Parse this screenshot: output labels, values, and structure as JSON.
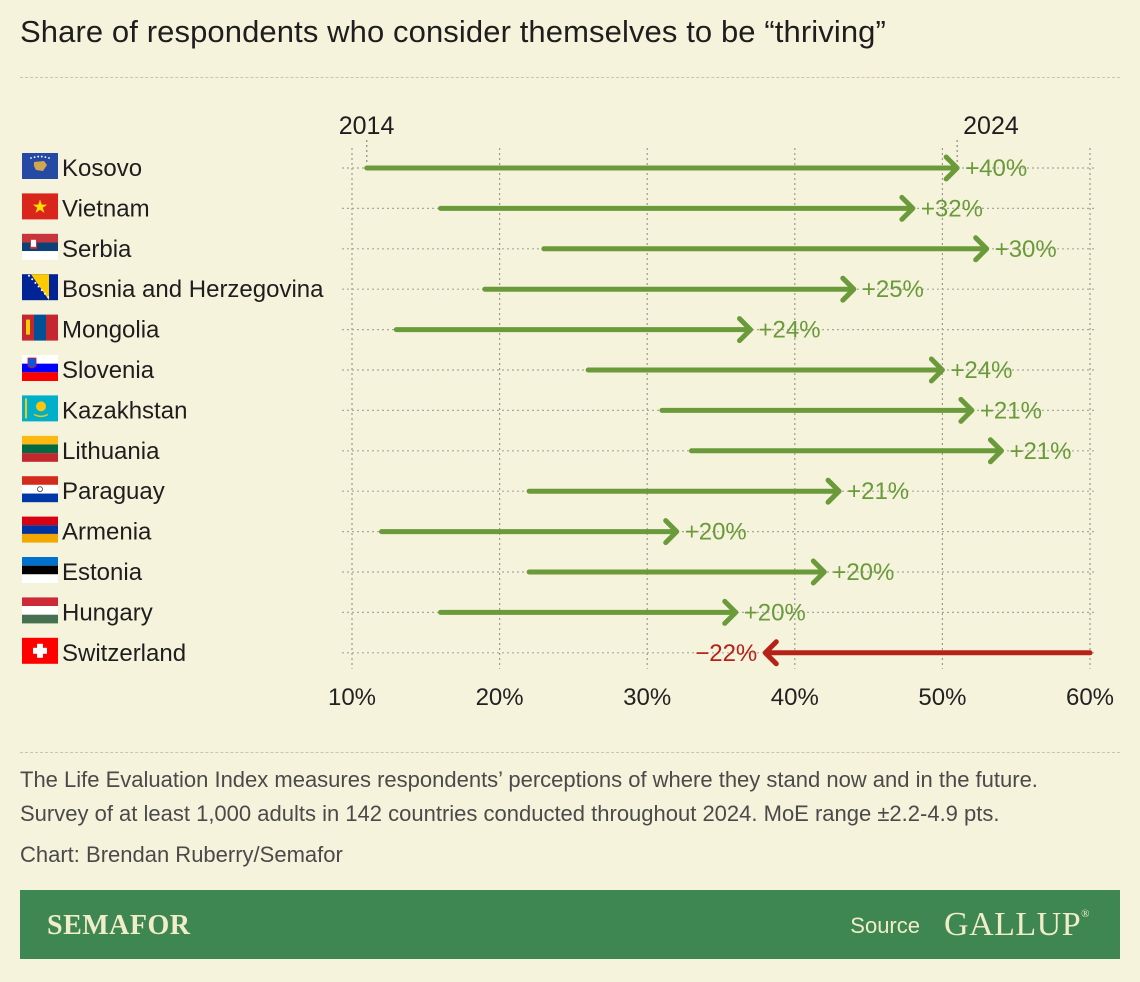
{
  "title": "Share of respondents who consider themselves to be “thriving”",
  "colors": {
    "increase": "#6a9a3a",
    "decrease": "#b52217",
    "background": "#f6f3dc",
    "footer": "#3f8752"
  },
  "chart_data": {
    "type": "arrow",
    "start_label": "2014",
    "end_label": "2024",
    "x_ticks": [
      "10%",
      "20%",
      "30%",
      "40%",
      "50%",
      "60%"
    ],
    "xlim": [
      10,
      60
    ],
    "grid": true,
    "rows": [
      {
        "country": "Kosovo",
        "flag": "kosovo",
        "start": 11,
        "end": 51,
        "label": "+40%"
      },
      {
        "country": "Vietnam",
        "flag": "vietnam",
        "start": 16,
        "end": 48,
        "label": "+32%"
      },
      {
        "country": "Serbia",
        "flag": "serbia",
        "start": 23,
        "end": 53,
        "label": "+30%"
      },
      {
        "country": "Bosnia and Herzegovina",
        "flag": "bosnia",
        "start": 19,
        "end": 44,
        "label": "+25%"
      },
      {
        "country": "Mongolia",
        "flag": "mongolia",
        "start": 13,
        "end": 37,
        "label": "+24%"
      },
      {
        "country": "Slovenia",
        "flag": "slovenia",
        "start": 26,
        "end": 50,
        "label": "+24%"
      },
      {
        "country": "Kazakhstan",
        "flag": "kazakhstan",
        "start": 31,
        "end": 52,
        "label": "+21%"
      },
      {
        "country": "Lithuania",
        "flag": "lithuania",
        "start": 33,
        "end": 54,
        "label": "+21%"
      },
      {
        "country": "Paraguay",
        "flag": "paraguay",
        "start": 22,
        "end": 43,
        "label": "+21%"
      },
      {
        "country": "Armenia",
        "flag": "armenia",
        "start": 12,
        "end": 32,
        "label": "+20%"
      },
      {
        "country": "Estonia",
        "flag": "estonia",
        "start": 22,
        "end": 42,
        "label": "+20%"
      },
      {
        "country": "Hungary",
        "flag": "hungary",
        "start": 16,
        "end": 36,
        "label": "+20%"
      },
      {
        "country": "Switzerland",
        "flag": "switzerland",
        "start": 60,
        "end": 38,
        "label": "−22%"
      }
    ]
  },
  "notes": {
    "line1": "The Life Evaluation Index measures respondents’ perceptions of where they stand now and in the future.",
    "line2": "Survey of at least 1,000 adults in 142 countries conducted throughout 2024. MoE range ±2.2-4.9 pts.",
    "credit": "Chart: Brendan Ruberry/Semafor"
  },
  "footer": {
    "brand": "SEMAFOR",
    "source_label": "Source",
    "source_name": "GALLUP",
    "source_mark": "®"
  }
}
